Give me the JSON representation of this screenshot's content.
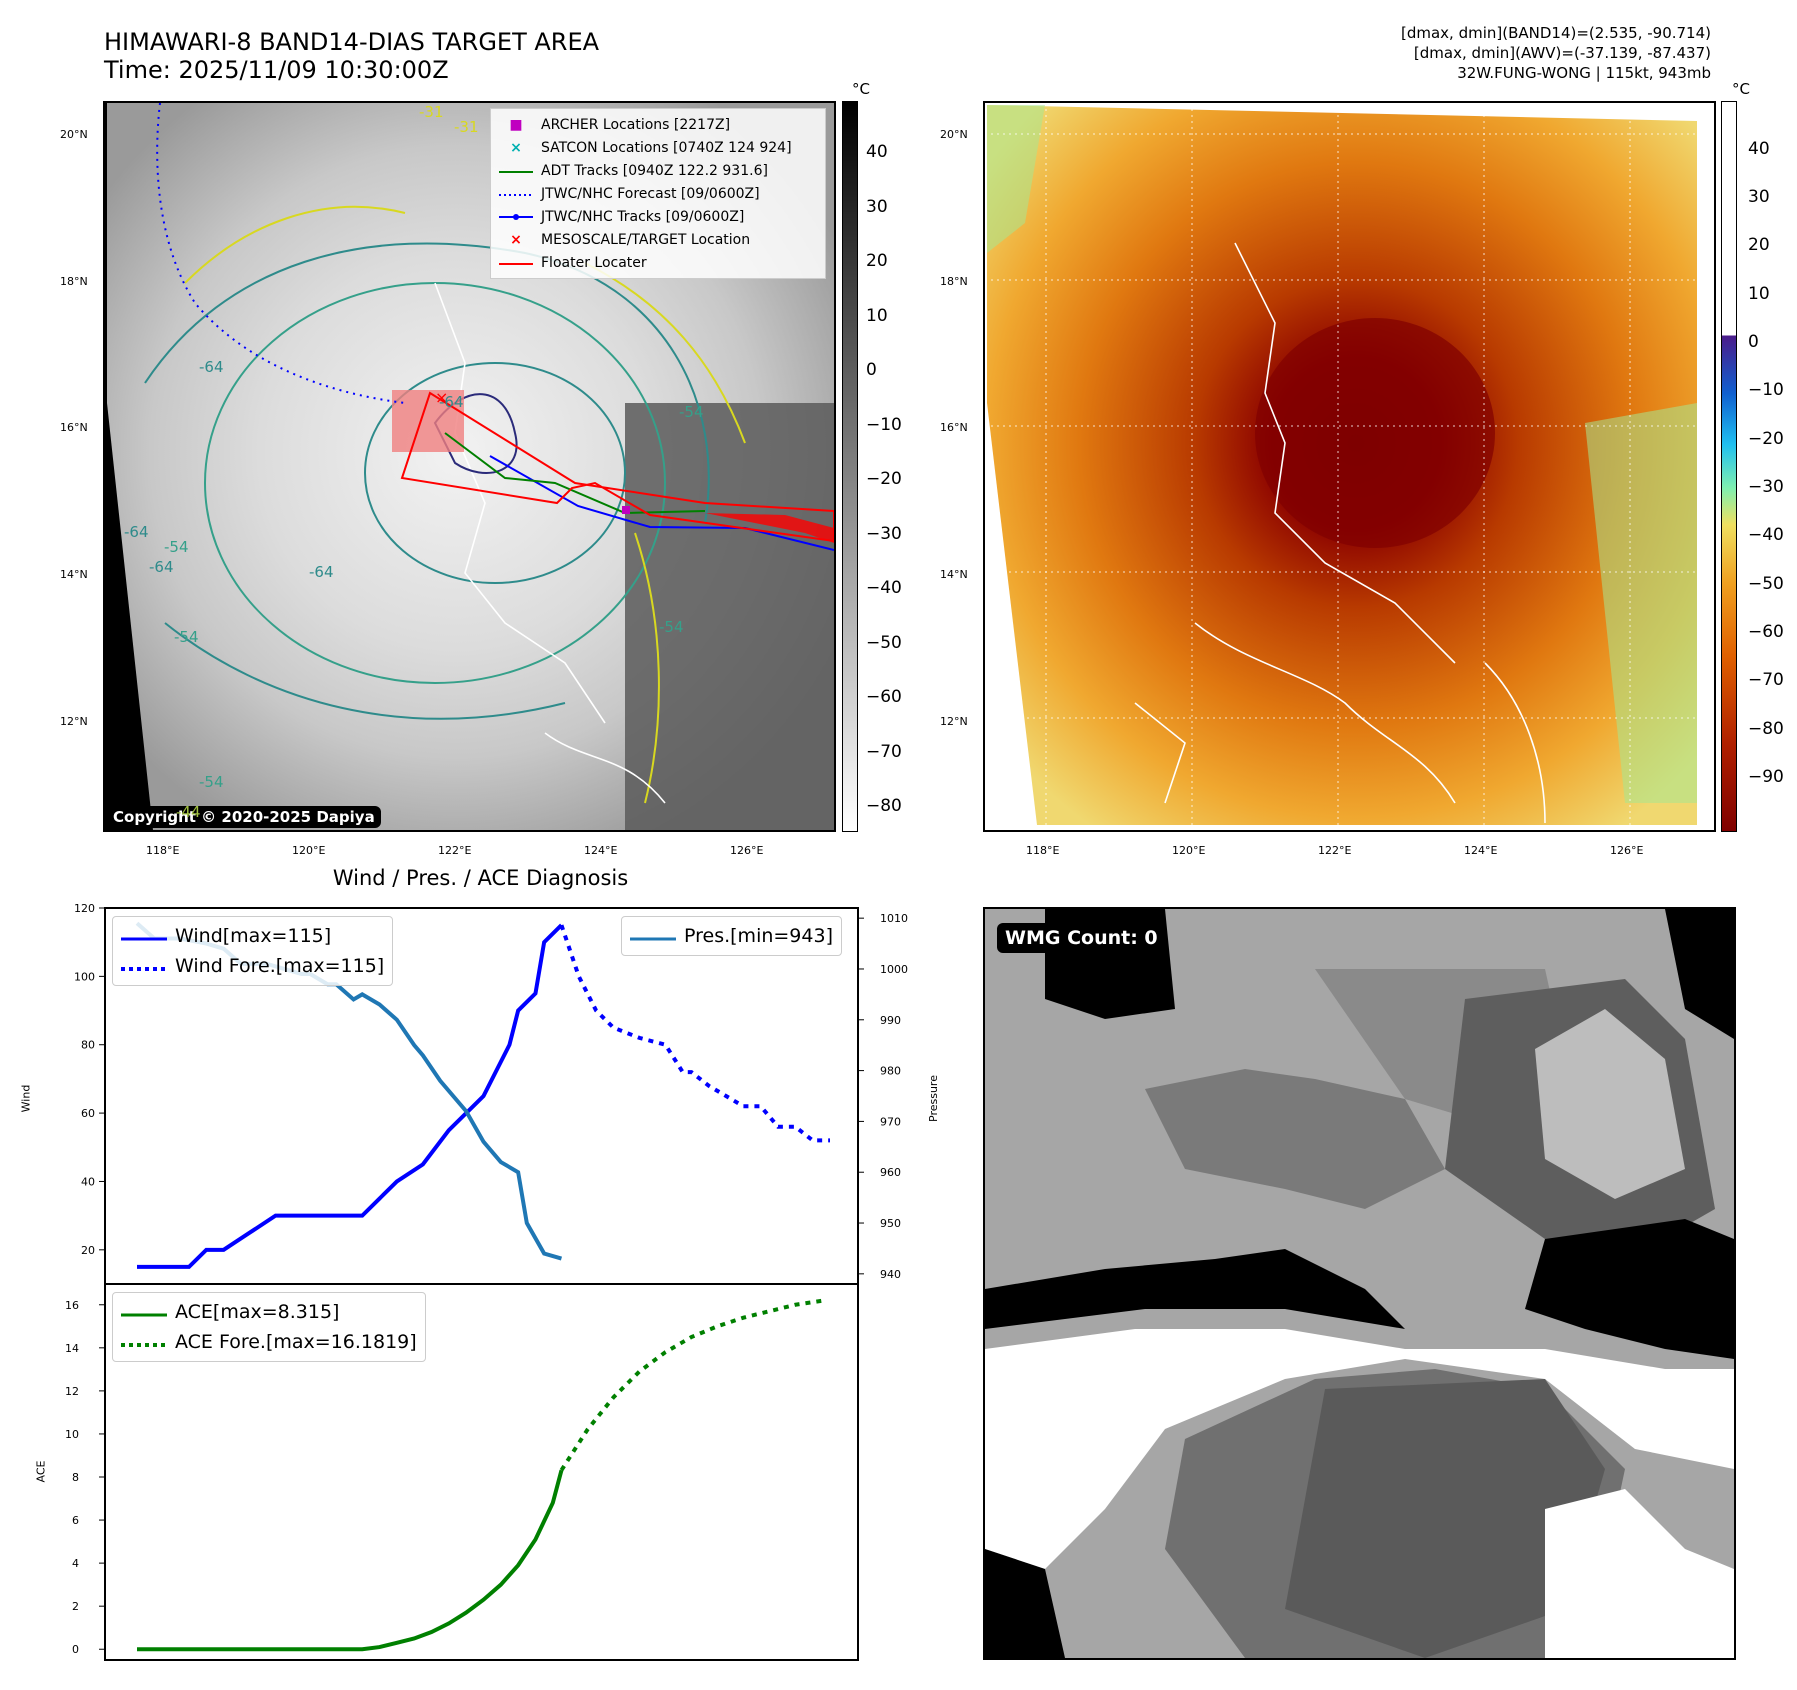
{
  "header": {
    "title_line1": "HIMAWARI-8 BAND14-DIAS TARGET AREA",
    "title_line2": "Time: 2025/11/09 10:30:00Z",
    "info_line1": "[dmax, dmin](BAND14)=(2.535, -90.714)",
    "info_line2": "[dmax, dmin](AWV)=(-37.139, -87.437)",
    "info_line3": "32W.FUNG-WONG | 115kt, 943mb"
  },
  "map_axes": {
    "lat_ticks": [
      "20°N",
      "18°N",
      "16°N",
      "14°N",
      "12°N"
    ],
    "lon_ticks": [
      "118°E",
      "120°E",
      "122°E",
      "124°E",
      "126°E"
    ]
  },
  "left_map": {
    "copyright": "Copyright © 2020-2025 Dapiya",
    "contour_labels": [
      "-64",
      "-64",
      "-64",
      "-64",
      "-54",
      "-54",
      "-54",
      "-31",
      "-31",
      "-54",
      "-44",
      "-54",
      "-64"
    ],
    "legend": [
      {
        "label": "ARCHER Locations [2217Z]",
        "marker": "square",
        "color": "#c000c0"
      },
      {
        "label": "SATCON Locations [0740Z 124 924]",
        "marker": "x",
        "color": "#00b0b0"
      },
      {
        "label": "ADT Tracks [0940Z 122.2 931.6]",
        "marker": "line",
        "color": "#008000"
      },
      {
        "label": "JTWC/NHC Forecast [09/0600Z]",
        "marker": "dotted",
        "color": "#0000ff"
      },
      {
        "label": "JTWC/NHC Tracks [09/0600Z]",
        "marker": "line-dot",
        "color": "#0000ff"
      },
      {
        "label": "MESOSCALE/TARGET Location",
        "marker": "x",
        "color": "#ff0000"
      },
      {
        "label": "Floater Locater",
        "marker": "line",
        "color": "#ff0000"
      }
    ],
    "colorbar": {
      "unit": "°C",
      "ticks": [
        "40",
        "30",
        "20",
        "10",
        "0",
        "−10",
        "−20",
        "−30",
        "−40",
        "−50",
        "−60",
        "−70",
        "−80"
      ],
      "colors": [
        "#000000",
        "#ffffff"
      ]
    }
  },
  "right_map": {
    "colorbar": {
      "unit": "°C",
      "ticks": [
        "40",
        "30",
        "20",
        "10",
        "0",
        "−10",
        "−20",
        "−30",
        "−40",
        "−50",
        "−60",
        "−70",
        "−80",
        "−90"
      ],
      "colors": [
        "#ffffff",
        "#4b1b8a",
        "#1060d0",
        "#20c0f0",
        "#80f0b0",
        "#f0e060",
        "#f0a020",
        "#e06000",
        "#b02000",
        "#800000"
      ]
    }
  },
  "wmg_panel": {
    "badge": "WMG Count: 0"
  },
  "diagnosis": {
    "title": "Wind / Pres. / ACE Diagnosis",
    "wind_ylabel": "Wind",
    "pres_ylabel": "Pressure",
    "ace_ylabel": "ACE",
    "legend_wind": "Wind[max=115]",
    "legend_wind_fore": "Wind Fore.[max=115]",
    "legend_pres": "Pres.[min=943]",
    "legend_ace": "ACE[max=8.315]",
    "legend_ace_fore": "ACE Fore.[max=16.1819]"
  },
  "chart_data": [
    {
      "type": "line",
      "title": "Wind / Pres. / ACE Diagnosis",
      "ylabel": "Wind",
      "y2label": "Pressure",
      "ylim": [
        10,
        120
      ],
      "y2lim": [
        938,
        1012
      ],
      "yticks": [
        20,
        40,
        60,
        80,
        100,
        120
      ],
      "y2ticks": [
        940,
        950,
        960,
        970,
        980,
        990,
        1000,
        1010
      ],
      "x": [
        0,
        1,
        2,
        3,
        4,
        5,
        6,
        7,
        8,
        9,
        10,
        11,
        12,
        13,
        14,
        15,
        16,
        17,
        18,
        19,
        20,
        21,
        22,
        23,
        24,
        25,
        26,
        27,
        28,
        29,
        30,
        31,
        32,
        33,
        34,
        35,
        36,
        37,
        38,
        39,
        40,
        41,
        42,
        43,
        44,
        45,
        46,
        47,
        48,
        49,
        50,
        51,
        52,
        53,
        54,
        55,
        56,
        57,
        58,
        59,
        60,
        61,
        62,
        63,
        64,
        65,
        66,
        67,
        68,
        69,
        70,
        71,
        72,
        73,
        74,
        75,
        76,
        77,
        78,
        79
      ],
      "series": [
        {
          "name": "Wind[max=115]",
          "axis": "left",
          "style": "solid",
          "color": "#0000ff",
          "x": [
            0,
            3,
            6,
            8,
            10,
            13,
            16,
            20,
            24,
            26,
            28,
            30,
            33,
            36,
            40,
            43,
            44,
            46,
            47,
            49
          ],
          "values": [
            15,
            15,
            15,
            20,
            20,
            25,
            30,
            30,
            30,
            30,
            35,
            40,
            45,
            55,
            65,
            80,
            90,
            95,
            110,
            115
          ]
        },
        {
          "name": "Wind Fore.[max=115]",
          "axis": "left",
          "style": "dotted",
          "color": "#0000ff",
          "x": [
            49,
            51,
            53,
            55,
            58,
            61,
            63,
            64,
            66,
            68,
            70,
            72,
            74,
            76,
            78,
            80
          ],
          "values": [
            115,
            100,
            90,
            85,
            82,
            80,
            72,
            72,
            68,
            65,
            62,
            62,
            56,
            56,
            52,
            52
          ]
        },
        {
          "name": "Pres.[min=943]",
          "axis": "right",
          "style": "solid",
          "color": "#1f77b4",
          "x": [
            0,
            2,
            5,
            8,
            10,
            12,
            15,
            17,
            19,
            20,
            22,
            23,
            25,
            26,
            28,
            30,
            32,
            33,
            35,
            38,
            40,
            42,
            44,
            45,
            47,
            49
          ],
          "values": [
            1009,
            1006,
            1006,
            1005,
            1004,
            1001,
            1001,
            1000,
            999,
            999,
            997,
            997,
            994,
            995,
            993,
            990,
            985,
            983,
            978,
            972,
            966,
            962,
            960,
            950,
            944,
            943
          ]
        }
      ]
    },
    {
      "type": "line",
      "ylabel": "ACE",
      "ylim": [
        -0.5,
        16.5
      ],
      "yticks": [
        0,
        2,
        4,
        6,
        8,
        10,
        12,
        14,
        16
      ],
      "series": [
        {
          "name": "ACE[max=8.315]",
          "style": "solid",
          "color": "#008000",
          "x": [
            0,
            10,
            20,
            22,
            24,
            26,
            28,
            30,
            32,
            34,
            36,
            38,
            40,
            42,
            44,
            46,
            48,
            49
          ],
          "values": [
            0,
            0,
            0,
            0,
            0,
            0,
            0.1,
            0.3,
            0.5,
            0.8,
            1.2,
            1.7,
            2.3,
            3.0,
            3.9,
            5.1,
            6.8,
            8.315
          ]
        },
        {
          "name": "ACE Fore.[max=16.1819]",
          "style": "dotted",
          "color": "#008000",
          "x": [
            49,
            52,
            55,
            58,
            61,
            64,
            67,
            70,
            73,
            76,
            79
          ],
          "values": [
            8.315,
            10.2,
            11.7,
            12.9,
            13.8,
            14.5,
            15.0,
            15.4,
            15.7,
            16.0,
            16.18
          ]
        }
      ]
    }
  ]
}
